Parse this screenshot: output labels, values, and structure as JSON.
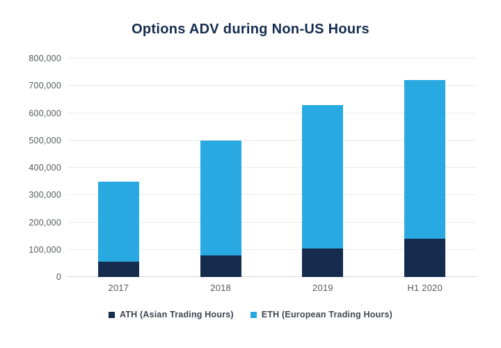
{
  "colors": {
    "navy": "#152C4F",
    "light_blue": "#29A9E1",
    "title_text": "#152C4F",
    "axis_text": "#56585D",
    "legend_text": "#3D4450",
    "gridline": "#EAEAEA",
    "baseline": "#D8D8D8",
    "background": "#FFFFFF"
  },
  "chart_data": {
    "type": "bar",
    "stacked": true,
    "title": "Options ADV during Non-US Hours",
    "categories": [
      "2017",
      "2018",
      "2019",
      "H1 2020"
    ],
    "series": [
      {
        "name": "ATH (Asian Trading Hours)",
        "short": "ATH",
        "color": "#152C4F",
        "values": [
          55000,
          80000,
          105000,
          140000
        ]
      },
      {
        "name": "ETH (European Trading Hours)",
        "short": "ETH",
        "color": "#29A9E1",
        "values": [
          295000,
          420000,
          525000,
          580000
        ]
      }
    ],
    "totals": [
      350000,
      500000,
      630000,
      720000
    ],
    "xlabel": "",
    "ylabel": "",
    "ylim": [
      0,
      800000
    ],
    "ytick_step": 100000,
    "ytick_labels": [
      "0",
      "100,000",
      "200,000",
      "300,000",
      "400,000",
      "500,000",
      "600,000",
      "700,000",
      "800,000"
    ],
    "grid": "horizontal",
    "legend_position": "bottom"
  }
}
